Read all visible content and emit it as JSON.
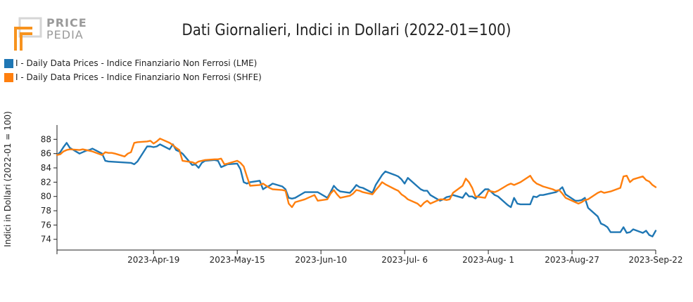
{
  "logo": {
    "line1": "PRICE",
    "line2": "PEDIA",
    "color": "#f7931e"
  },
  "chart_data": {
    "type": "line",
    "title": "Dati Giornalieri, Indici in Dollari (2022-01=100)",
    "ylabel": "Indici in Dollari (2022-01 = 100)",
    "xlabel": "",
    "ylim": [
      72.5,
      90
    ],
    "yticks": [
      74,
      76,
      78,
      80,
      82,
      84,
      86,
      88
    ],
    "xlim": [
      "2023-03-20",
      "2023-09-22"
    ],
    "xticks": [
      {
        "date": "2023-04-19",
        "label": "2023-Apr-19"
      },
      {
        "date": "2023-05-15",
        "label": "2023-May-15"
      },
      {
        "date": "2023-06-10",
        "label": "2023-Jun-10"
      },
      {
        "date": "2023-07-06",
        "label": "2023-Jul- 6"
      },
      {
        "date": "2023-08-01",
        "label": "2023-Aug- 1"
      },
      {
        "date": "2023-08-27",
        "label": "2023-Aug-27"
      },
      {
        "date": "2023-09-22",
        "label": "2023-Sep-22"
      }
    ],
    "legend_position": "top-left",
    "grid": false,
    "series": [
      {
        "name": "I - Daily Data Prices - Indice Finanziario Non Ferrosi (LME)",
        "color": "#1f77b4",
        "points": [
          [
            "2023-03-20",
            85.8
          ],
          [
            "2023-03-21",
            86.2
          ],
          [
            "2023-03-22",
            86.9
          ],
          [
            "2023-03-23",
            87.5
          ],
          [
            "2023-03-24",
            86.8
          ],
          [
            "2023-03-27",
            86.0
          ],
          [
            "2023-03-28",
            86.2
          ],
          [
            "2023-03-29",
            86.4
          ],
          [
            "2023-03-30",
            86.5
          ],
          [
            "2023-03-31",
            86.7
          ],
          [
            "2023-04-03",
            86.0
          ],
          [
            "2023-04-04",
            85.0
          ],
          [
            "2023-04-05",
            84.9
          ],
          [
            "2023-04-12",
            84.7
          ],
          [
            "2023-04-13",
            84.5
          ],
          [
            "2023-04-14",
            84.9
          ],
          [
            "2023-04-17",
            87.0
          ],
          [
            "2023-04-18",
            87.0
          ],
          [
            "2023-04-19",
            86.9
          ],
          [
            "2023-04-20",
            87.0
          ],
          [
            "2023-04-21",
            87.3
          ],
          [
            "2023-04-24",
            86.6
          ],
          [
            "2023-04-25",
            87.3
          ],
          [
            "2023-04-26",
            86.5
          ],
          [
            "2023-04-27",
            86.3
          ],
          [
            "2023-04-28",
            86.0
          ],
          [
            "2023-05-01",
            84.4
          ],
          [
            "2023-05-02",
            84.5
          ],
          [
            "2023-05-03",
            84.0
          ],
          [
            "2023-05-04",
            84.7
          ],
          [
            "2023-05-05",
            85.0
          ],
          [
            "2023-05-08",
            85.1
          ],
          [
            "2023-05-09",
            85.0
          ],
          [
            "2023-05-10",
            84.1
          ],
          [
            "2023-05-11",
            84.3
          ],
          [
            "2023-05-12",
            84.5
          ],
          [
            "2023-05-15",
            84.6
          ],
          [
            "2023-05-16",
            83.8
          ],
          [
            "2023-05-17",
            82.0
          ],
          [
            "2023-05-18",
            81.8
          ],
          [
            "2023-05-19",
            82.0
          ],
          [
            "2023-05-22",
            82.2
          ],
          [
            "2023-05-23",
            81.0
          ],
          [
            "2023-05-24",
            81.3
          ],
          [
            "2023-05-25",
            81.5
          ],
          [
            "2023-05-26",
            81.8
          ],
          [
            "2023-05-29",
            81.4
          ],
          [
            "2023-05-30",
            81.0
          ],
          [
            "2023-05-31",
            79.8
          ],
          [
            "2023-06-01",
            79.7
          ],
          [
            "2023-06-02",
            79.8
          ],
          [
            "2023-06-05",
            80.6
          ],
          [
            "2023-06-06",
            80.6
          ],
          [
            "2023-06-07",
            80.6
          ],
          [
            "2023-06-08",
            80.6
          ],
          [
            "2023-06-09",
            80.6
          ],
          [
            "2023-06-12",
            79.8
          ],
          [
            "2023-06-13",
            80.6
          ],
          [
            "2023-06-14",
            81.5
          ],
          [
            "2023-06-15",
            81.0
          ],
          [
            "2023-06-16",
            80.7
          ],
          [
            "2023-06-19",
            80.5
          ],
          [
            "2023-06-20",
            81.0
          ],
          [
            "2023-06-21",
            81.6
          ],
          [
            "2023-06-22",
            81.3
          ],
          [
            "2023-06-23",
            81.2
          ],
          [
            "2023-06-26",
            80.5
          ],
          [
            "2023-06-27",
            81.6
          ],
          [
            "2023-06-28",
            82.3
          ],
          [
            "2023-06-29",
            83.0
          ],
          [
            "2023-06-30",
            83.5
          ],
          [
            "2023-07-03",
            83.0
          ],
          [
            "2023-07-04",
            82.8
          ],
          [
            "2023-07-05",
            82.4
          ],
          [
            "2023-07-06",
            81.8
          ],
          [
            "2023-07-07",
            82.6
          ],
          [
            "2023-07-10",
            81.4
          ],
          [
            "2023-07-11",
            81.0
          ],
          [
            "2023-07-12",
            80.8
          ],
          [
            "2023-07-13",
            80.8
          ],
          [
            "2023-07-14",
            80.2
          ],
          [
            "2023-07-17",
            79.4
          ],
          [
            "2023-07-18",
            79.6
          ],
          [
            "2023-07-19",
            79.9
          ],
          [
            "2023-07-20",
            80.0
          ],
          [
            "2023-07-21",
            80.2
          ],
          [
            "2023-07-24",
            79.8
          ],
          [
            "2023-07-25",
            80.5
          ],
          [
            "2023-07-26",
            80.0
          ],
          [
            "2023-07-27",
            80.0
          ],
          [
            "2023-07-28",
            79.7
          ],
          [
            "2023-07-31",
            81.0
          ],
          [
            "2023-08-01",
            81.0
          ],
          [
            "2023-08-02",
            80.6
          ],
          [
            "2023-08-03",
            80.2
          ],
          [
            "2023-08-04",
            80.0
          ],
          [
            "2023-08-07",
            78.8
          ],
          [
            "2023-08-08",
            78.5
          ],
          [
            "2023-08-09",
            79.8
          ],
          [
            "2023-08-10",
            79.0
          ],
          [
            "2023-08-11",
            78.9
          ],
          [
            "2023-08-14",
            78.9
          ],
          [
            "2023-08-15",
            80.0
          ],
          [
            "2023-08-16",
            79.9
          ],
          [
            "2023-08-17",
            80.2
          ],
          [
            "2023-08-18",
            80.2
          ],
          [
            "2023-08-21",
            80.5
          ],
          [
            "2023-08-22",
            80.6
          ],
          [
            "2023-08-23",
            80.9
          ],
          [
            "2023-08-24",
            81.3
          ],
          [
            "2023-08-25",
            80.3
          ],
          [
            "2023-08-28",
            79.4
          ],
          [
            "2023-08-29",
            79.4
          ],
          [
            "2023-08-30",
            79.5
          ],
          [
            "2023-08-31",
            79.8
          ],
          [
            "2023-09-01",
            78.4
          ],
          [
            "2023-09-04",
            77.2
          ],
          [
            "2023-09-05",
            76.2
          ],
          [
            "2023-09-06",
            76.0
          ],
          [
            "2023-09-07",
            75.7
          ],
          [
            "2023-09-08",
            75.0
          ],
          [
            "2023-09-11",
            75.0
          ],
          [
            "2023-09-12",
            75.7
          ],
          [
            "2023-09-13",
            74.9
          ],
          [
            "2023-09-14",
            75.0
          ],
          [
            "2023-09-15",
            75.4
          ],
          [
            "2023-09-18",
            74.9
          ],
          [
            "2023-09-19",
            75.2
          ],
          [
            "2023-09-20",
            74.6
          ],
          [
            "2023-09-21",
            74.4
          ],
          [
            "2023-09-22",
            75.2
          ]
        ]
      },
      {
        "name": "I - Daily Data Prices - Indice Finanziario Non Ferrosi (SHFE)",
        "color": "#ff7f0e",
        "points": [
          [
            "2023-03-20",
            85.8
          ],
          [
            "2023-03-21",
            85.9
          ],
          [
            "2023-03-22",
            86.3
          ],
          [
            "2023-03-23",
            86.5
          ],
          [
            "2023-03-24",
            86.6
          ],
          [
            "2023-03-27",
            86.5
          ],
          [
            "2023-03-28",
            86.6
          ],
          [
            "2023-03-29",
            86.5
          ],
          [
            "2023-03-30",
            86.4
          ],
          [
            "2023-03-31",
            86.3
          ],
          [
            "2023-04-03",
            85.8
          ],
          [
            "2023-04-04",
            86.2
          ],
          [
            "2023-04-05",
            86.1
          ],
          [
            "2023-04-06",
            86.1
          ],
          [
            "2023-04-07",
            86.0
          ],
          [
            "2023-04-10",
            85.6
          ],
          [
            "2023-04-11",
            86.0
          ],
          [
            "2023-04-12",
            86.2
          ],
          [
            "2023-04-13",
            87.5
          ],
          [
            "2023-04-14",
            87.6
          ],
          [
            "2023-04-17",
            87.7
          ],
          [
            "2023-04-18",
            87.8
          ],
          [
            "2023-04-19",
            87.4
          ],
          [
            "2023-04-20",
            87.7
          ],
          [
            "2023-04-21",
            88.1
          ],
          [
            "2023-04-24",
            87.5
          ],
          [
            "2023-04-25",
            87.2
          ],
          [
            "2023-04-26",
            86.8
          ],
          [
            "2023-04-27",
            86.5
          ],
          [
            "2023-04-28",
            85.0
          ],
          [
            "2023-05-01",
            84.8
          ],
          [
            "2023-05-02",
            84.6
          ],
          [
            "2023-05-03",
            84.9
          ],
          [
            "2023-05-04",
            85.0
          ],
          [
            "2023-05-05",
            85.1
          ],
          [
            "2023-05-08",
            85.2
          ],
          [
            "2023-05-09",
            85.2
          ],
          [
            "2023-05-10",
            85.3
          ],
          [
            "2023-05-11",
            84.5
          ],
          [
            "2023-05-12",
            84.6
          ],
          [
            "2023-05-15",
            85.0
          ],
          [
            "2023-05-16",
            84.7
          ],
          [
            "2023-05-17",
            84.2
          ],
          [
            "2023-05-18",
            82.8
          ],
          [
            "2023-05-19",
            81.5
          ],
          [
            "2023-05-22",
            81.6
          ],
          [
            "2023-05-23",
            81.8
          ],
          [
            "2023-05-24",
            81.5
          ],
          [
            "2023-05-25",
            81.2
          ],
          [
            "2023-05-26",
            81.0
          ],
          [
            "2023-05-29",
            80.9
          ],
          [
            "2023-05-30",
            80.8
          ],
          [
            "2023-05-31",
            79.0
          ],
          [
            "2023-06-01",
            78.5
          ],
          [
            "2023-06-02",
            79.2
          ],
          [
            "2023-06-05",
            79.6
          ],
          [
            "2023-06-06",
            79.8
          ],
          [
            "2023-06-07",
            80.0
          ],
          [
            "2023-06-08",
            80.2
          ],
          [
            "2023-06-09",
            79.4
          ],
          [
            "2023-06-12",
            79.6
          ],
          [
            "2023-06-13",
            80.4
          ],
          [
            "2023-06-14",
            80.9
          ],
          [
            "2023-06-15",
            80.3
          ],
          [
            "2023-06-16",
            79.8
          ],
          [
            "2023-06-19",
            80.1
          ],
          [
            "2023-06-20",
            80.4
          ],
          [
            "2023-06-21",
            80.9
          ],
          [
            "2023-06-22",
            80.8
          ],
          [
            "2023-06-23",
            80.6
          ],
          [
            "2023-06-26",
            80.3
          ],
          [
            "2023-06-27",
            80.9
          ],
          [
            "2023-06-28",
            81.4
          ],
          [
            "2023-06-29",
            82.0
          ],
          [
            "2023-06-30",
            81.7
          ],
          [
            "2023-07-03",
            81.0
          ],
          [
            "2023-07-04",
            80.8
          ],
          [
            "2023-07-05",
            80.3
          ],
          [
            "2023-07-06",
            80.0
          ],
          [
            "2023-07-07",
            79.6
          ],
          [
            "2023-07-10",
            79.0
          ],
          [
            "2023-07-11",
            78.6
          ],
          [
            "2023-07-12",
            79.1
          ],
          [
            "2023-07-13",
            79.4
          ],
          [
            "2023-07-14",
            79.0
          ],
          [
            "2023-07-17",
            79.6
          ],
          [
            "2023-07-18",
            79.6
          ],
          [
            "2023-07-19",
            79.5
          ],
          [
            "2023-07-20",
            79.6
          ],
          [
            "2023-07-21",
            80.5
          ],
          [
            "2023-07-24",
            81.5
          ],
          [
            "2023-07-25",
            82.5
          ],
          [
            "2023-07-26",
            82.0
          ],
          [
            "2023-07-27",
            81.2
          ],
          [
            "2023-07-28",
            80.0
          ],
          [
            "2023-07-31",
            79.8
          ],
          [
            "2023-08-01",
            80.8
          ],
          [
            "2023-08-02",
            80.7
          ],
          [
            "2023-08-03",
            80.6
          ],
          [
            "2023-08-04",
            80.8
          ],
          [
            "2023-08-07",
            81.6
          ],
          [
            "2023-08-08",
            81.8
          ],
          [
            "2023-08-09",
            81.6
          ],
          [
            "2023-08-10",
            81.8
          ],
          [
            "2023-08-11",
            82.0
          ],
          [
            "2023-08-14",
            82.9
          ],
          [
            "2023-08-15",
            82.2
          ],
          [
            "2023-08-16",
            81.8
          ],
          [
            "2023-08-17",
            81.6
          ],
          [
            "2023-08-18",
            81.4
          ],
          [
            "2023-08-21",
            81.0
          ],
          [
            "2023-08-22",
            80.8
          ],
          [
            "2023-08-23",
            80.9
          ],
          [
            "2023-08-24",
            80.4
          ],
          [
            "2023-08-25",
            79.8
          ],
          [
            "2023-08-28",
            79.2
          ],
          [
            "2023-08-29",
            79.0
          ],
          [
            "2023-08-30",
            79.2
          ],
          [
            "2023-08-31",
            79.5
          ],
          [
            "2023-09-01",
            79.6
          ],
          [
            "2023-09-04",
            80.5
          ],
          [
            "2023-09-05",
            80.7
          ],
          [
            "2023-09-06",
            80.5
          ],
          [
            "2023-09-07",
            80.6
          ],
          [
            "2023-09-08",
            80.7
          ],
          [
            "2023-09-11",
            81.2
          ],
          [
            "2023-09-12",
            82.8
          ],
          [
            "2023-09-13",
            82.9
          ],
          [
            "2023-09-14",
            82.0
          ],
          [
            "2023-09-15",
            82.4
          ],
          [
            "2023-09-18",
            82.8
          ],
          [
            "2023-09-19",
            82.3
          ],
          [
            "2023-09-20",
            82.1
          ],
          [
            "2023-09-21",
            81.6
          ],
          [
            "2023-09-22",
            81.3
          ]
        ]
      }
    ]
  }
}
